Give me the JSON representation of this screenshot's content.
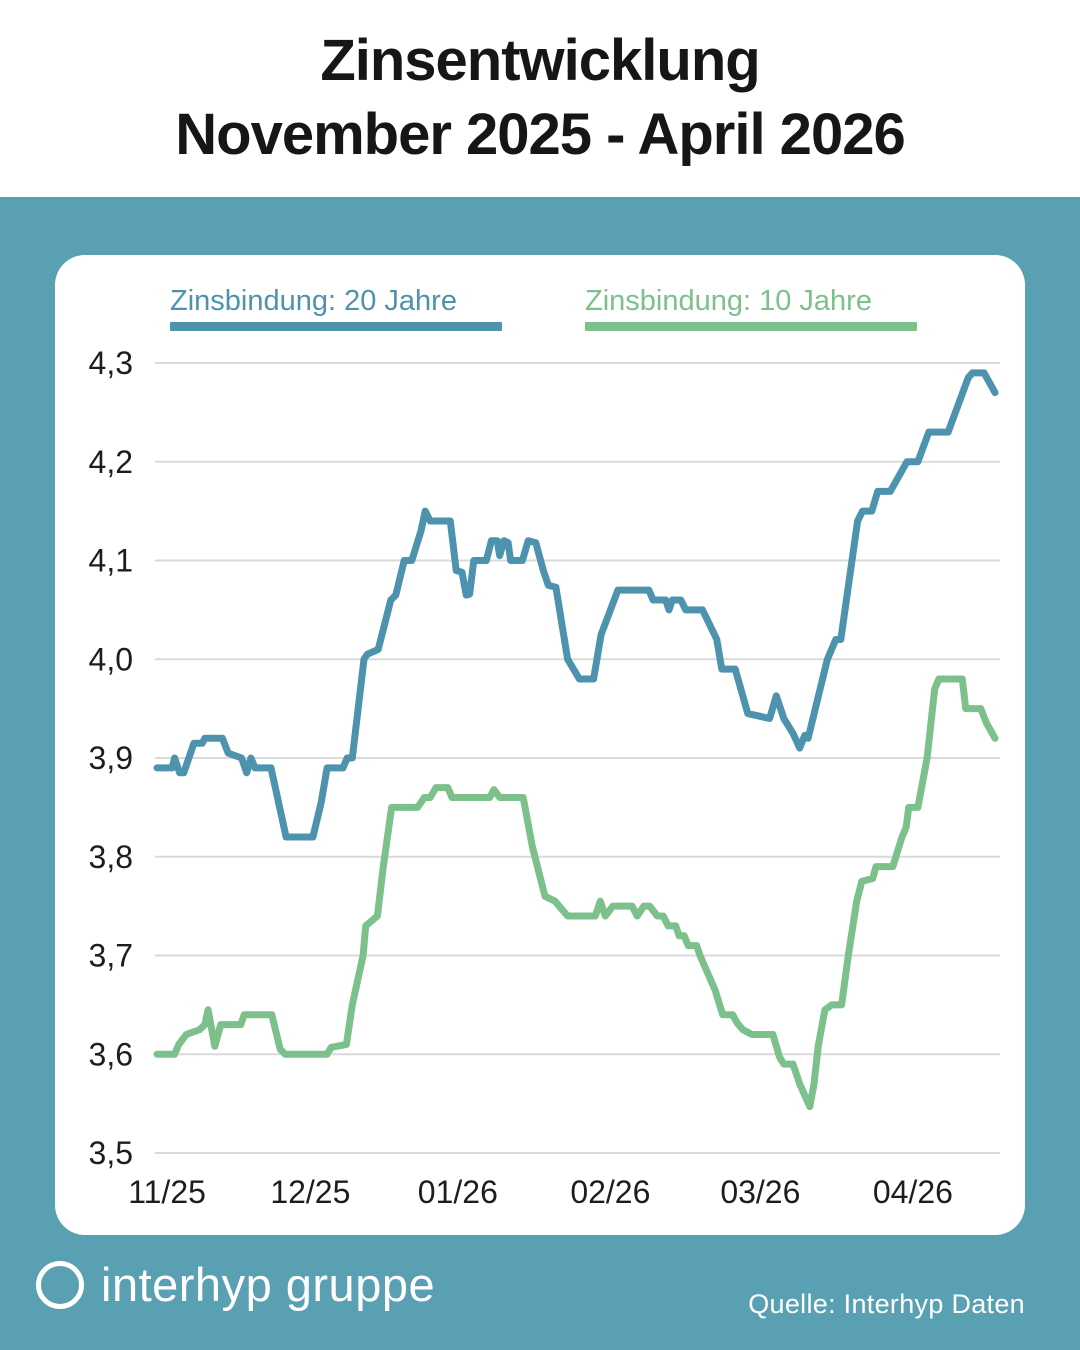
{
  "header": {
    "title_line1": "Zinsentwicklung",
    "title_line2": "November 2025 - April 2026"
  },
  "legend": [
    {
      "label": "Zinsbindung: 20 Jahre",
      "color": "#4E93AE"
    },
    {
      "label": "Zinsbindung: 10 Jahre",
      "color": "#7CC08C"
    }
  ],
  "footer": {
    "brand": "interhyp gruppe",
    "source": "Quelle: Interhyp Daten"
  },
  "colors": {
    "background_band": "#58A0B2",
    "card": "#FFFFFF",
    "gridline": "#DADADA",
    "axis_text": "#1D1D1D",
    "title_text": "#161616",
    "series_20y": "#4E93AE",
    "series_10y": "#7CC08C"
  },
  "chart_data": {
    "type": "line",
    "title": "Zinsentwicklung November 2025 - April 2026",
    "xlabel": "",
    "ylabel": "",
    "ylim": [
      3.5,
      4.3
    ],
    "grid": true,
    "legend_position": "top",
    "decimal_separator": "comma",
    "y_ticks": [
      {
        "value": 4.3,
        "label": "4,3"
      },
      {
        "value": 4.2,
        "label": "4,2"
      },
      {
        "value": 4.1,
        "label": "4,1"
      },
      {
        "value": 4.0,
        "label": "4,0"
      },
      {
        "value": 3.9,
        "label": "3,9"
      },
      {
        "value": 3.8,
        "label": "3,8"
      },
      {
        "value": 3.7,
        "label": "3,7"
      },
      {
        "value": 3.6,
        "label": "3,6"
      },
      {
        "value": 3.5,
        "label": "3,5"
      }
    ],
    "x_ticks": [
      {
        "t": 0.012,
        "label": "11/25"
      },
      {
        "t": 0.183,
        "label": "12/25"
      },
      {
        "t": 0.359,
        "label": "01/26"
      },
      {
        "t": 0.541,
        "label": "02/26"
      },
      {
        "t": 0.72,
        "label": "03/26"
      },
      {
        "t": 0.902,
        "label": "04/26"
      }
    ],
    "x_unit": "fraction of time axis from start (Nov 2025) to end (late Apr 2026)",
    "y_unit": "interest rate in percent",
    "series": [
      {
        "name": "Zinsbindung: 20 Jahre",
        "color": "#4E93AE",
        "points": [
          [
            0.0,
            3.89
          ],
          [
            0.018,
            3.89
          ],
          [
            0.021,
            3.9
          ],
          [
            0.027,
            3.885
          ],
          [
            0.032,
            3.885
          ],
          [
            0.044,
            3.915
          ],
          [
            0.054,
            3.915
          ],
          [
            0.057,
            3.92
          ],
          [
            0.078,
            3.92
          ],
          [
            0.085,
            3.905
          ],
          [
            0.101,
            3.9
          ],
          [
            0.107,
            3.885
          ],
          [
            0.112,
            3.9
          ],
          [
            0.117,
            3.89
          ],
          [
            0.136,
            3.89
          ],
          [
            0.154,
            3.82
          ],
          [
            0.186,
            3.82
          ],
          [
            0.196,
            3.855
          ],
          [
            0.203,
            3.89
          ],
          [
            0.222,
            3.89
          ],
          [
            0.227,
            3.9
          ],
          [
            0.233,
            3.9
          ],
          [
            0.247,
            4.0
          ],
          [
            0.251,
            4.005
          ],
          [
            0.264,
            4.01
          ],
          [
            0.279,
            4.06
          ],
          [
            0.285,
            4.065
          ],
          [
            0.295,
            4.1
          ],
          [
            0.304,
            4.1
          ],
          [
            0.315,
            4.13
          ],
          [
            0.32,
            4.15
          ],
          [
            0.326,
            4.14
          ],
          [
            0.35,
            4.14
          ],
          [
            0.357,
            4.09
          ],
          [
            0.364,
            4.088
          ],
          [
            0.369,
            4.065
          ],
          [
            0.373,
            4.066
          ],
          [
            0.378,
            4.1
          ],
          [
            0.393,
            4.1
          ],
          [
            0.399,
            4.12
          ],
          [
            0.406,
            4.12
          ],
          [
            0.409,
            4.105
          ],
          [
            0.414,
            4.12
          ],
          [
            0.419,
            4.118
          ],
          [
            0.422,
            4.1
          ],
          [
            0.436,
            4.1
          ],
          [
            0.443,
            4.12
          ],
          [
            0.452,
            4.118
          ],
          [
            0.461,
            4.09
          ],
          [
            0.467,
            4.075
          ],
          [
            0.476,
            4.073
          ],
          [
            0.49,
            4.0
          ],
          [
            0.504,
            3.98
          ],
          [
            0.521,
            3.98
          ],
          [
            0.53,
            4.025
          ],
          [
            0.55,
            4.07
          ],
          [
            0.587,
            4.07
          ],
          [
            0.592,
            4.06
          ],
          [
            0.607,
            4.06
          ],
          [
            0.611,
            4.05
          ],
          [
            0.615,
            4.06
          ],
          [
            0.625,
            4.06
          ],
          [
            0.631,
            4.05
          ],
          [
            0.651,
            4.05
          ],
          [
            0.668,
            4.02
          ],
          [
            0.674,
            3.99
          ],
          [
            0.69,
            3.99
          ],
          [
            0.705,
            3.945
          ],
          [
            0.731,
            3.94
          ],
          [
            0.739,
            3.963
          ],
          [
            0.748,
            3.94
          ],
          [
            0.759,
            3.925
          ],
          [
            0.767,
            3.91
          ],
          [
            0.773,
            3.923
          ],
          [
            0.777,
            3.92
          ],
          [
            0.8,
            4.0
          ],
          [
            0.81,
            4.02
          ],
          [
            0.816,
            4.02
          ],
          [
            0.836,
            4.14
          ],
          [
            0.842,
            4.15
          ],
          [
            0.853,
            4.15
          ],
          [
            0.86,
            4.17
          ],
          [
            0.875,
            4.17
          ],
          [
            0.895,
            4.2
          ],
          [
            0.908,
            4.2
          ],
          [
            0.921,
            4.23
          ],
          [
            0.944,
            4.23
          ],
          [
            0.968,
            4.285
          ],
          [
            0.973,
            4.29
          ],
          [
            0.987,
            4.29
          ],
          [
            1.0,
            4.27
          ]
        ]
      },
      {
        "name": "Zinsbindung: 10 Jahre",
        "color": "#7CC08C",
        "points": [
          [
            0.0,
            3.6
          ],
          [
            0.021,
            3.6
          ],
          [
            0.026,
            3.61
          ],
          [
            0.035,
            3.62
          ],
          [
            0.051,
            3.625
          ],
          [
            0.057,
            3.63
          ],
          [
            0.061,
            3.645
          ],
          [
            0.069,
            3.608
          ],
          [
            0.076,
            3.63
          ],
          [
            0.1,
            3.63
          ],
          [
            0.104,
            3.64
          ],
          [
            0.137,
            3.64
          ],
          [
            0.147,
            3.605
          ],
          [
            0.153,
            3.6
          ],
          [
            0.203,
            3.6
          ],
          [
            0.208,
            3.607
          ],
          [
            0.226,
            3.61
          ],
          [
            0.233,
            3.65
          ],
          [
            0.246,
            3.7
          ],
          [
            0.249,
            3.73
          ],
          [
            0.263,
            3.74
          ],
          [
            0.27,
            3.79
          ],
          [
            0.28,
            3.85
          ],
          [
            0.311,
            3.85
          ],
          [
            0.319,
            3.86
          ],
          [
            0.326,
            3.86
          ],
          [
            0.333,
            3.87
          ],
          [
            0.347,
            3.87
          ],
          [
            0.352,
            3.86
          ],
          [
            0.397,
            3.86
          ],
          [
            0.402,
            3.868
          ],
          [
            0.409,
            3.86
          ],
          [
            0.437,
            3.86
          ],
          [
            0.448,
            3.81
          ],
          [
            0.463,
            3.76
          ],
          [
            0.475,
            3.755
          ],
          [
            0.49,
            3.74
          ],
          [
            0.523,
            3.74
          ],
          [
            0.529,
            3.755
          ],
          [
            0.535,
            3.74
          ],
          [
            0.544,
            3.75
          ],
          [
            0.567,
            3.75
          ],
          [
            0.573,
            3.74
          ],
          [
            0.581,
            3.75
          ],
          [
            0.588,
            3.75
          ],
          [
            0.597,
            3.74
          ],
          [
            0.604,
            3.74
          ],
          [
            0.61,
            3.73
          ],
          [
            0.619,
            3.73
          ],
          [
            0.623,
            3.72
          ],
          [
            0.629,
            3.72
          ],
          [
            0.634,
            3.71
          ],
          [
            0.644,
            3.71
          ],
          [
            0.648,
            3.7
          ],
          [
            0.666,
            3.665
          ],
          [
            0.675,
            3.64
          ],
          [
            0.687,
            3.64
          ],
          [
            0.692,
            3.632
          ],
          [
            0.699,
            3.625
          ],
          [
            0.71,
            3.62
          ],
          [
            0.735,
            3.62
          ],
          [
            0.743,
            3.597
          ],
          [
            0.748,
            3.59
          ],
          [
            0.759,
            3.59
          ],
          [
            0.767,
            3.57
          ],
          [
            0.779,
            3.547
          ],
          [
            0.784,
            3.57
          ],
          [
            0.789,
            3.608
          ],
          [
            0.797,
            3.645
          ],
          [
            0.805,
            3.65
          ],
          [
            0.817,
            3.65
          ],
          [
            0.825,
            3.7
          ],
          [
            0.835,
            3.755
          ],
          [
            0.841,
            3.775
          ],
          [
            0.854,
            3.778
          ],
          [
            0.858,
            3.79
          ],
          [
            0.878,
            3.79
          ],
          [
            0.889,
            3.82
          ],
          [
            0.894,
            3.83
          ],
          [
            0.897,
            3.85
          ],
          [
            0.908,
            3.85
          ],
          [
            0.919,
            3.9
          ],
          [
            0.928,
            3.97
          ],
          [
            0.933,
            3.98
          ],
          [
            0.961,
            3.98
          ],
          [
            0.965,
            3.95
          ],
          [
            0.983,
            3.95
          ],
          [
            0.99,
            3.935
          ],
          [
            1.0,
            3.92
          ]
        ]
      }
    ]
  }
}
